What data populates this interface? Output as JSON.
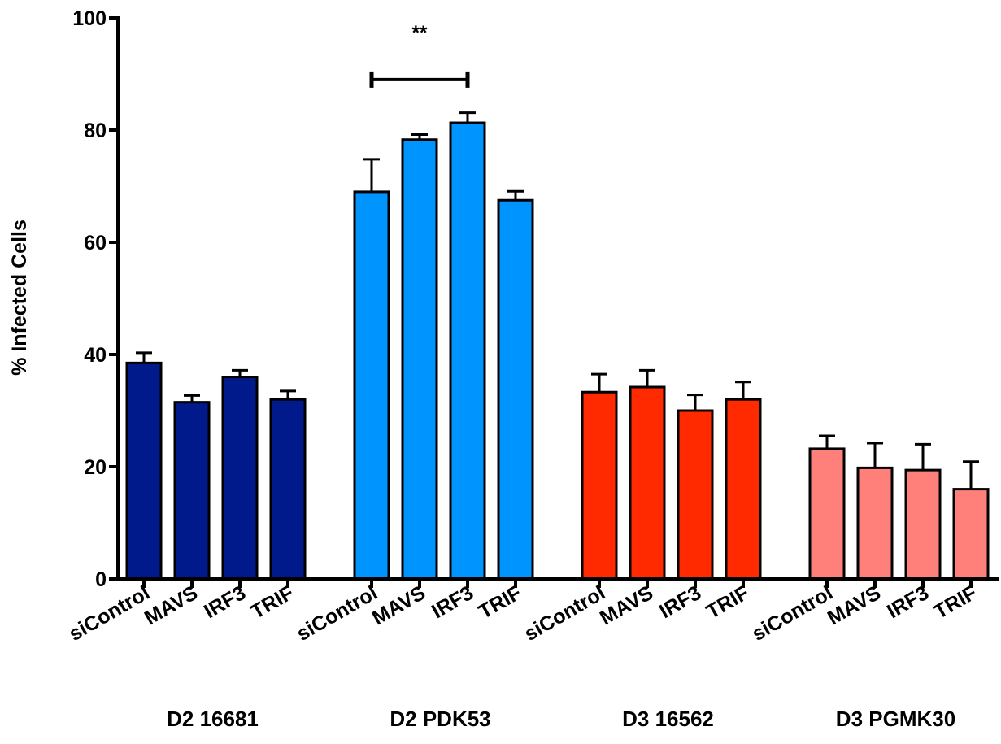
{
  "chart_data": {
    "type": "bar",
    "ylabel": "% Infected Cells",
    "xlabel": "",
    "ylim": [
      0,
      100
    ],
    "yticks": [
      0,
      20,
      40,
      60,
      80,
      100
    ],
    "grid": false,
    "legend": "none",
    "groups": [
      {
        "name": "D2 16681",
        "color": "#001a8c",
        "categories": [
          "siControl",
          "MAVS",
          "IRF3",
          "TRIF"
        ],
        "values": [
          38.5,
          31.5,
          36.0,
          32.0
        ],
        "errors": [
          1.8,
          1.2,
          1.2,
          1.5
        ]
      },
      {
        "name": "D2 PDK53",
        "color": "#0094ff",
        "categories": [
          "siControl",
          "MAVS",
          "IRF3",
          "TRIF"
        ],
        "values": [
          69.0,
          78.3,
          81.3,
          67.5
        ],
        "errors": [
          5.8,
          0.9,
          1.8,
          1.6
        ]
      },
      {
        "name": "D3 16562",
        "color": "#ff2a00",
        "categories": [
          "siControl",
          "MAVS",
          "IRF3",
          "TRIF"
        ],
        "values": [
          33.3,
          34.2,
          30.0,
          32.0
        ],
        "errors": [
          3.2,
          3.0,
          2.8,
          3.1
        ]
      },
      {
        "name": "D3 PGMK30",
        "color": "#ff7f7a",
        "categories": [
          "siControl",
          "MAVS",
          "IRF3",
          "TRIF"
        ],
        "values": [
          23.2,
          19.8,
          19.4,
          16.0
        ],
        "errors": [
          2.3,
          4.4,
          4.6,
          4.9
        ]
      }
    ],
    "annotations": [
      {
        "text": "**",
        "from_group": 1,
        "from_index": 0,
        "to_group": 1,
        "to_index": 2,
        "y": 89
      }
    ]
  }
}
